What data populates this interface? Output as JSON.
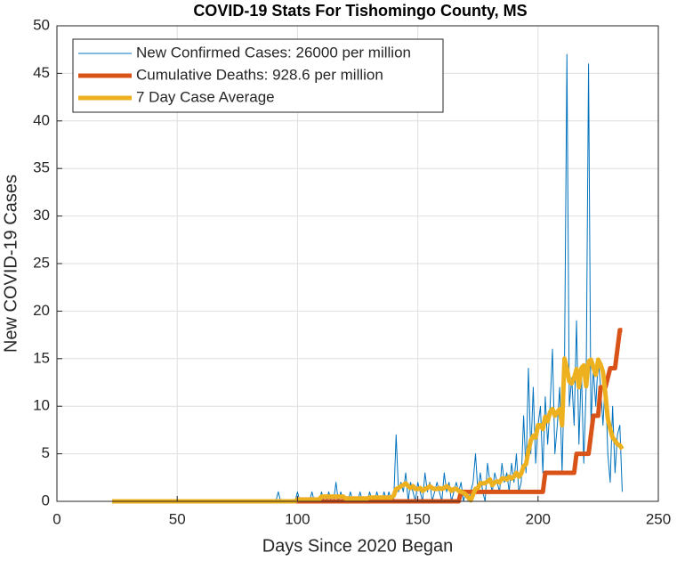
{
  "chart_data": {
    "type": "line",
    "title": "COVID-19 Stats For Tishomingo County, MS",
    "xlabel": "Days Since 2020 Began",
    "ylabel": "New COVID-19 Cases",
    "xlim": [
      0,
      250
    ],
    "xticks": [
      0,
      50,
      100,
      150,
      200,
      250
    ],
    "ylim": [
      0,
      50
    ],
    "yticks": [
      0,
      5,
      10,
      15,
      20,
      25,
      30,
      35,
      40,
      45,
      50
    ],
    "grid": true,
    "legend": "upper left",
    "x": [
      23,
      24,
      25,
      26,
      27,
      28,
      29,
      30,
      31,
      32,
      33,
      34,
      35,
      36,
      37,
      38,
      39,
      40,
      41,
      42,
      43,
      44,
      45,
      46,
      47,
      48,
      49,
      50,
      51,
      52,
      53,
      54,
      55,
      56,
      57,
      58,
      59,
      60,
      61,
      62,
      63,
      64,
      65,
      66,
      67,
      68,
      69,
      70,
      71,
      72,
      73,
      74,
      75,
      76,
      77,
      78,
      79,
      80,
      81,
      82,
      83,
      84,
      85,
      86,
      87,
      88,
      89,
      90,
      91,
      92,
      93,
      94,
      95,
      96,
      97,
      98,
      99,
      100,
      101,
      102,
      103,
      104,
      105,
      106,
      107,
      108,
      109,
      110,
      111,
      112,
      113,
      114,
      115,
      116,
      117,
      118,
      119,
      120,
      121,
      122,
      123,
      124,
      125,
      126,
      127,
      128,
      129,
      130,
      131,
      132,
      133,
      134,
      135,
      136,
      137,
      138,
      139,
      140,
      141,
      142,
      143,
      144,
      145,
      146,
      147,
      148,
      149,
      150,
      151,
      152,
      153,
      154,
      155,
      156,
      157,
      158,
      159,
      160,
      161,
      162,
      163,
      164,
      165,
      166,
      167,
      168,
      169,
      170,
      171,
      172,
      173,
      174,
      175,
      176,
      177,
      178,
      179,
      180,
      181,
      182,
      183,
      184,
      185,
      186,
      187,
      188,
      189,
      190,
      191,
      192,
      193,
      194,
      195,
      196,
      197,
      198,
      199,
      200,
      201,
      202,
      203,
      204,
      205,
      206,
      207,
      208,
      209,
      210,
      211,
      212,
      213,
      214,
      215,
      216,
      217,
      218,
      219,
      220,
      221,
      222,
      223,
      224,
      225,
      226,
      227,
      228,
      229,
      230,
      231,
      232,
      233,
      234,
      235
    ],
    "series": [
      {
        "name": "New Confirmed Cases: 26000 per million",
        "color": "#0072BD",
        "width": 1,
        "values": [
          0,
          0,
          0,
          0,
          0,
          0,
          0,
          0,
          0,
          0,
          0,
          0,
          0,
          0,
          0,
          0,
          0,
          0,
          0,
          0,
          0,
          0,
          0,
          0,
          0,
          0,
          0,
          0,
          0,
          0,
          0,
          0,
          0,
          0,
          0,
          0,
          0,
          0,
          0,
          0,
          0,
          0,
          0,
          0,
          0,
          0,
          0,
          0,
          0,
          0,
          0,
          0,
          0,
          0,
          0,
          0,
          0,
          0,
          0,
          0,
          0,
          0,
          0,
          0,
          0,
          0,
          0,
          0,
          0,
          1,
          0,
          0,
          0,
          0,
          0,
          0,
          0,
          1,
          0,
          0,
          0,
          0,
          0,
          1,
          0,
          0,
          0,
          1,
          0,
          0,
          1,
          0,
          0,
          2,
          0,
          1,
          0,
          0,
          0,
          1,
          0,
          0,
          0,
          1,
          0,
          0,
          0,
          1,
          0,
          0,
          1,
          0,
          0,
          1,
          0,
          1,
          0,
          0,
          7,
          1,
          2,
          1,
          3,
          0,
          2,
          1,
          0,
          2,
          1,
          0,
          3,
          1,
          2,
          0,
          1,
          2,
          1,
          0,
          3,
          1,
          2,
          0,
          1,
          2,
          1,
          2,
          0,
          1,
          0,
          1,
          2,
          5,
          1,
          3,
          1,
          0,
          4,
          2,
          1,
          3,
          2,
          1,
          4,
          2,
          3,
          1,
          4,
          2,
          5,
          1,
          2,
          9,
          3,
          14,
          5,
          12,
          4,
          8,
          10,
          3,
          11,
          6,
          10,
          16,
          5,
          8,
          12,
          3,
          14,
          47,
          10,
          13,
          8,
          19,
          6,
          14,
          4,
          12,
          46,
          8,
          14,
          10,
          15,
          12,
          8,
          13,
          5,
          2,
          10,
          3,
          7,
          8,
          1
        ]
      },
      {
        "name": "Cumulative Deaths: 928.6 per million",
        "color": "#D95319",
        "width": 5,
        "values": [
          0,
          0,
          0,
          0,
          0,
          0,
          0,
          0,
          0,
          0,
          0,
          0,
          0,
          0,
          0,
          0,
          0,
          0,
          0,
          0,
          0,
          0,
          0,
          0,
          0,
          0,
          0,
          0,
          0,
          0,
          0,
          0,
          0,
          0,
          0,
          0,
          0,
          0,
          0,
          0,
          0,
          0,
          0,
          0,
          0,
          0,
          0,
          0,
          0,
          0,
          0,
          0,
          0,
          0,
          0,
          0,
          0,
          0,
          0,
          0,
          0,
          0,
          0,
          0,
          0,
          0,
          0,
          0,
          0,
          0,
          0,
          0,
          0,
          0,
          0,
          0,
          0,
          0,
          0,
          0,
          0,
          0,
          0,
          0,
          0,
          0,
          0,
          0,
          0,
          0,
          0,
          0,
          0,
          0,
          0,
          0,
          0,
          0,
          0,
          0,
          0,
          0,
          0,
          0,
          0,
          0,
          0,
          0,
          0,
          0,
          0,
          0,
          0,
          0,
          0,
          0,
          0,
          0,
          0,
          0,
          0,
          0,
          0,
          0,
          0,
          0,
          0,
          0,
          0,
          0,
          0,
          0,
          0,
          0,
          0,
          0,
          0,
          0,
          0,
          0,
          0,
          0,
          0,
          0,
          0,
          1,
          1,
          1,
          1,
          1,
          1,
          1,
          1,
          1,
          1,
          1,
          1,
          1,
          1,
          1,
          1,
          1,
          1,
          1,
          1,
          1,
          1,
          1,
          1,
          1,
          1,
          1,
          1,
          1,
          1,
          1,
          1,
          1,
          1,
          1,
          3,
          3,
          3,
          3,
          3,
          3,
          3,
          3,
          3,
          3,
          3,
          3,
          3,
          5,
          5,
          5,
          5,
          5,
          5,
          7,
          9,
          9,
          9,
          12,
          12,
          12,
          13,
          14,
          14,
          14,
          16,
          18,
          18
        ]
      },
      {
        "name": "7 Day Case Average",
        "color": "#EDB120",
        "width": 5,
        "values": [
          0,
          0,
          0,
          0,
          0,
          0,
          0,
          0,
          0,
          0,
          0,
          0,
          0,
          0,
          0,
          0,
          0,
          0,
          0,
          0,
          0,
          0,
          0,
          0,
          0,
          0,
          0,
          0,
          0,
          0,
          0,
          0,
          0,
          0,
          0,
          0,
          0,
          0,
          0,
          0,
          0,
          0,
          0,
          0,
          0,
          0,
          0,
          0,
          0,
          0,
          0,
          0,
          0,
          0,
          0,
          0,
          0,
          0,
          0,
          0,
          0,
          0,
          0,
          0,
          0,
          0,
          0,
          0,
          0,
          0,
          0,
          0,
          0,
          0,
          0,
          0,
          0,
          0.2,
          0.2,
          0.2,
          0.2,
          0.2,
          0.2,
          0.2,
          0.2,
          0.2,
          0.2,
          0.5,
          0.5,
          0.5,
          0.5,
          0.5,
          0.5,
          0.5,
          0.5,
          0.5,
          0.5,
          0.3,
          0.3,
          0.3,
          0.3,
          0.3,
          0.3,
          0.3,
          0.3,
          0.3,
          0.3,
          0.4,
          0.4,
          0.4,
          0.4,
          0.4,
          0.4,
          0.4,
          0.4,
          0.4,
          0.4,
          0.6,
          1.3,
          1.4,
          1.6,
          1.7,
          1.9,
          1.6,
          1.4,
          1.6,
          1.3,
          1.3,
          1.4,
          1.1,
          1.3,
          1.4,
          1.6,
          1.4,
          1.3,
          1.3,
          1.4,
          1.3,
          1.4,
          1.6,
          1.4,
          1.1,
          1.3,
          1.3,
          1.1,
          1.0,
          0.9,
          0.7,
          0.4,
          0.1,
          0.7,
          1.3,
          1.4,
          1.9,
          1.9,
          1.9,
          2.1,
          2.3,
          1.7,
          2.0,
          2.1,
          2.0,
          2.4,
          2.4,
          2.3,
          2.6,
          2.4,
          2.6,
          3.0,
          2.6,
          2.9,
          3.7,
          3.9,
          5.3,
          6.4,
          6.9,
          6.7,
          8.0,
          8.0,
          7.6,
          8.9,
          8.4,
          9.4,
          9.7,
          9.0,
          9.4,
          9.7,
          8.0,
          15.0,
          14.0,
          12.6,
          12.4,
          13.0,
          13.9,
          12.0,
          14.0,
          14.3,
          12.1,
          14.7,
          14.9,
          14.1,
          13.3,
          14.9,
          14.4,
          13.6,
          11.3,
          8.7,
          7.6,
          6.7,
          6.4,
          6.0,
          5.9,
          5.5
        ]
      }
    ]
  }
}
